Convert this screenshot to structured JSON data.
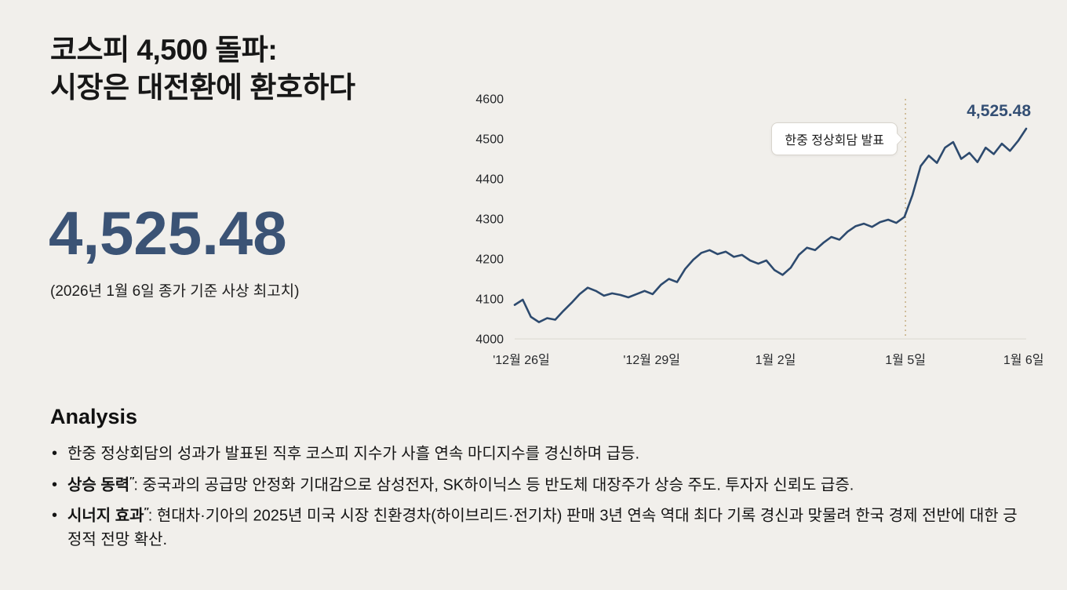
{
  "page": {
    "background": "#f1efeb"
  },
  "header": {
    "title_line1": "코스피 4,500 돌파:",
    "title_line2": "시장은 대전환에 환호하다"
  },
  "highlight": {
    "value": "4,525.48",
    "value_color": "#3b5375",
    "caption": "(2026년 1월 6일 종가 기준 사상 최고치)"
  },
  "chart_data": {
    "type": "line",
    "title": "",
    "xlabel": "",
    "ylabel": "",
    "ylim": [
      4000,
      4600
    ],
    "y_ticks": [
      4000,
      4100,
      4200,
      4300,
      4400,
      4500,
      4600
    ],
    "grid": false,
    "legend": "none",
    "x_ticks": [
      {
        "label": "'12월 26일",
        "pos": 0.013
      },
      {
        "label": "'12월 29일",
        "pos": 0.268
      },
      {
        "label": "1월 2일",
        "pos": 0.51
      },
      {
        "label": "1월 5일",
        "pos": 0.764
      },
      {
        "label": "1월 6일",
        "pos": 0.995
      }
    ],
    "series": [
      {
        "name": "KOSPI",
        "color": "#2d4a6e",
        "values": [
          4085,
          4098,
          4055,
          4042,
          4052,
          4048,
          4070,
          4090,
          4112,
          4128,
          4120,
          4108,
          4114,
          4110,
          4104,
          4112,
          4120,
          4112,
          4135,
          4150,
          4142,
          4175,
          4198,
          4215,
          4222,
          4212,
          4218,
          4205,
          4210,
          4196,
          4188,
          4196,
          4172,
          4160,
          4178,
          4210,
          4228,
          4222,
          4240,
          4255,
          4248,
          4268,
          4282,
          4288,
          4280,
          4292,
          4298,
          4290,
          4305,
          4360,
          4432,
          4458,
          4440,
          4478,
          4492,
          4450,
          4465,
          4442,
          4478,
          4462,
          4488,
          4470,
          4495,
          4525.48
        ]
      }
    ],
    "annotation": {
      "label": "한중 정상회담 발표",
      "x": 0.764,
      "line_color": "#c9b288"
    },
    "end_label": "4,525.48"
  },
  "analysis": {
    "heading": "Analysis",
    "bullets": [
      {
        "prefix": "",
        "mark": "",
        "text": "한중 정상회담의 성과가 발표된 직후 코스피 지수가 사흘 연속 마디지수를 경신하며 급등."
      },
      {
        "prefix": "상승 동력",
        "mark": "″",
        "text": ": 중국과의 공급망 안정화 기대감으로 삼성전자, SK하이닉스 등 반도체 대장주가 상승 주도. 투자자 신뢰도 급증."
      },
      {
        "prefix": "시너지 효과",
        "mark": "″",
        "text": ": 현대차·기아의 2025년 미국 시장 친환경차(하이브리드·전기차) 판매 3년 연속 역대 최다 기록 경신과 맞물려 한국 경제 전반에 대한 긍정적 전망 확산."
      }
    ]
  }
}
